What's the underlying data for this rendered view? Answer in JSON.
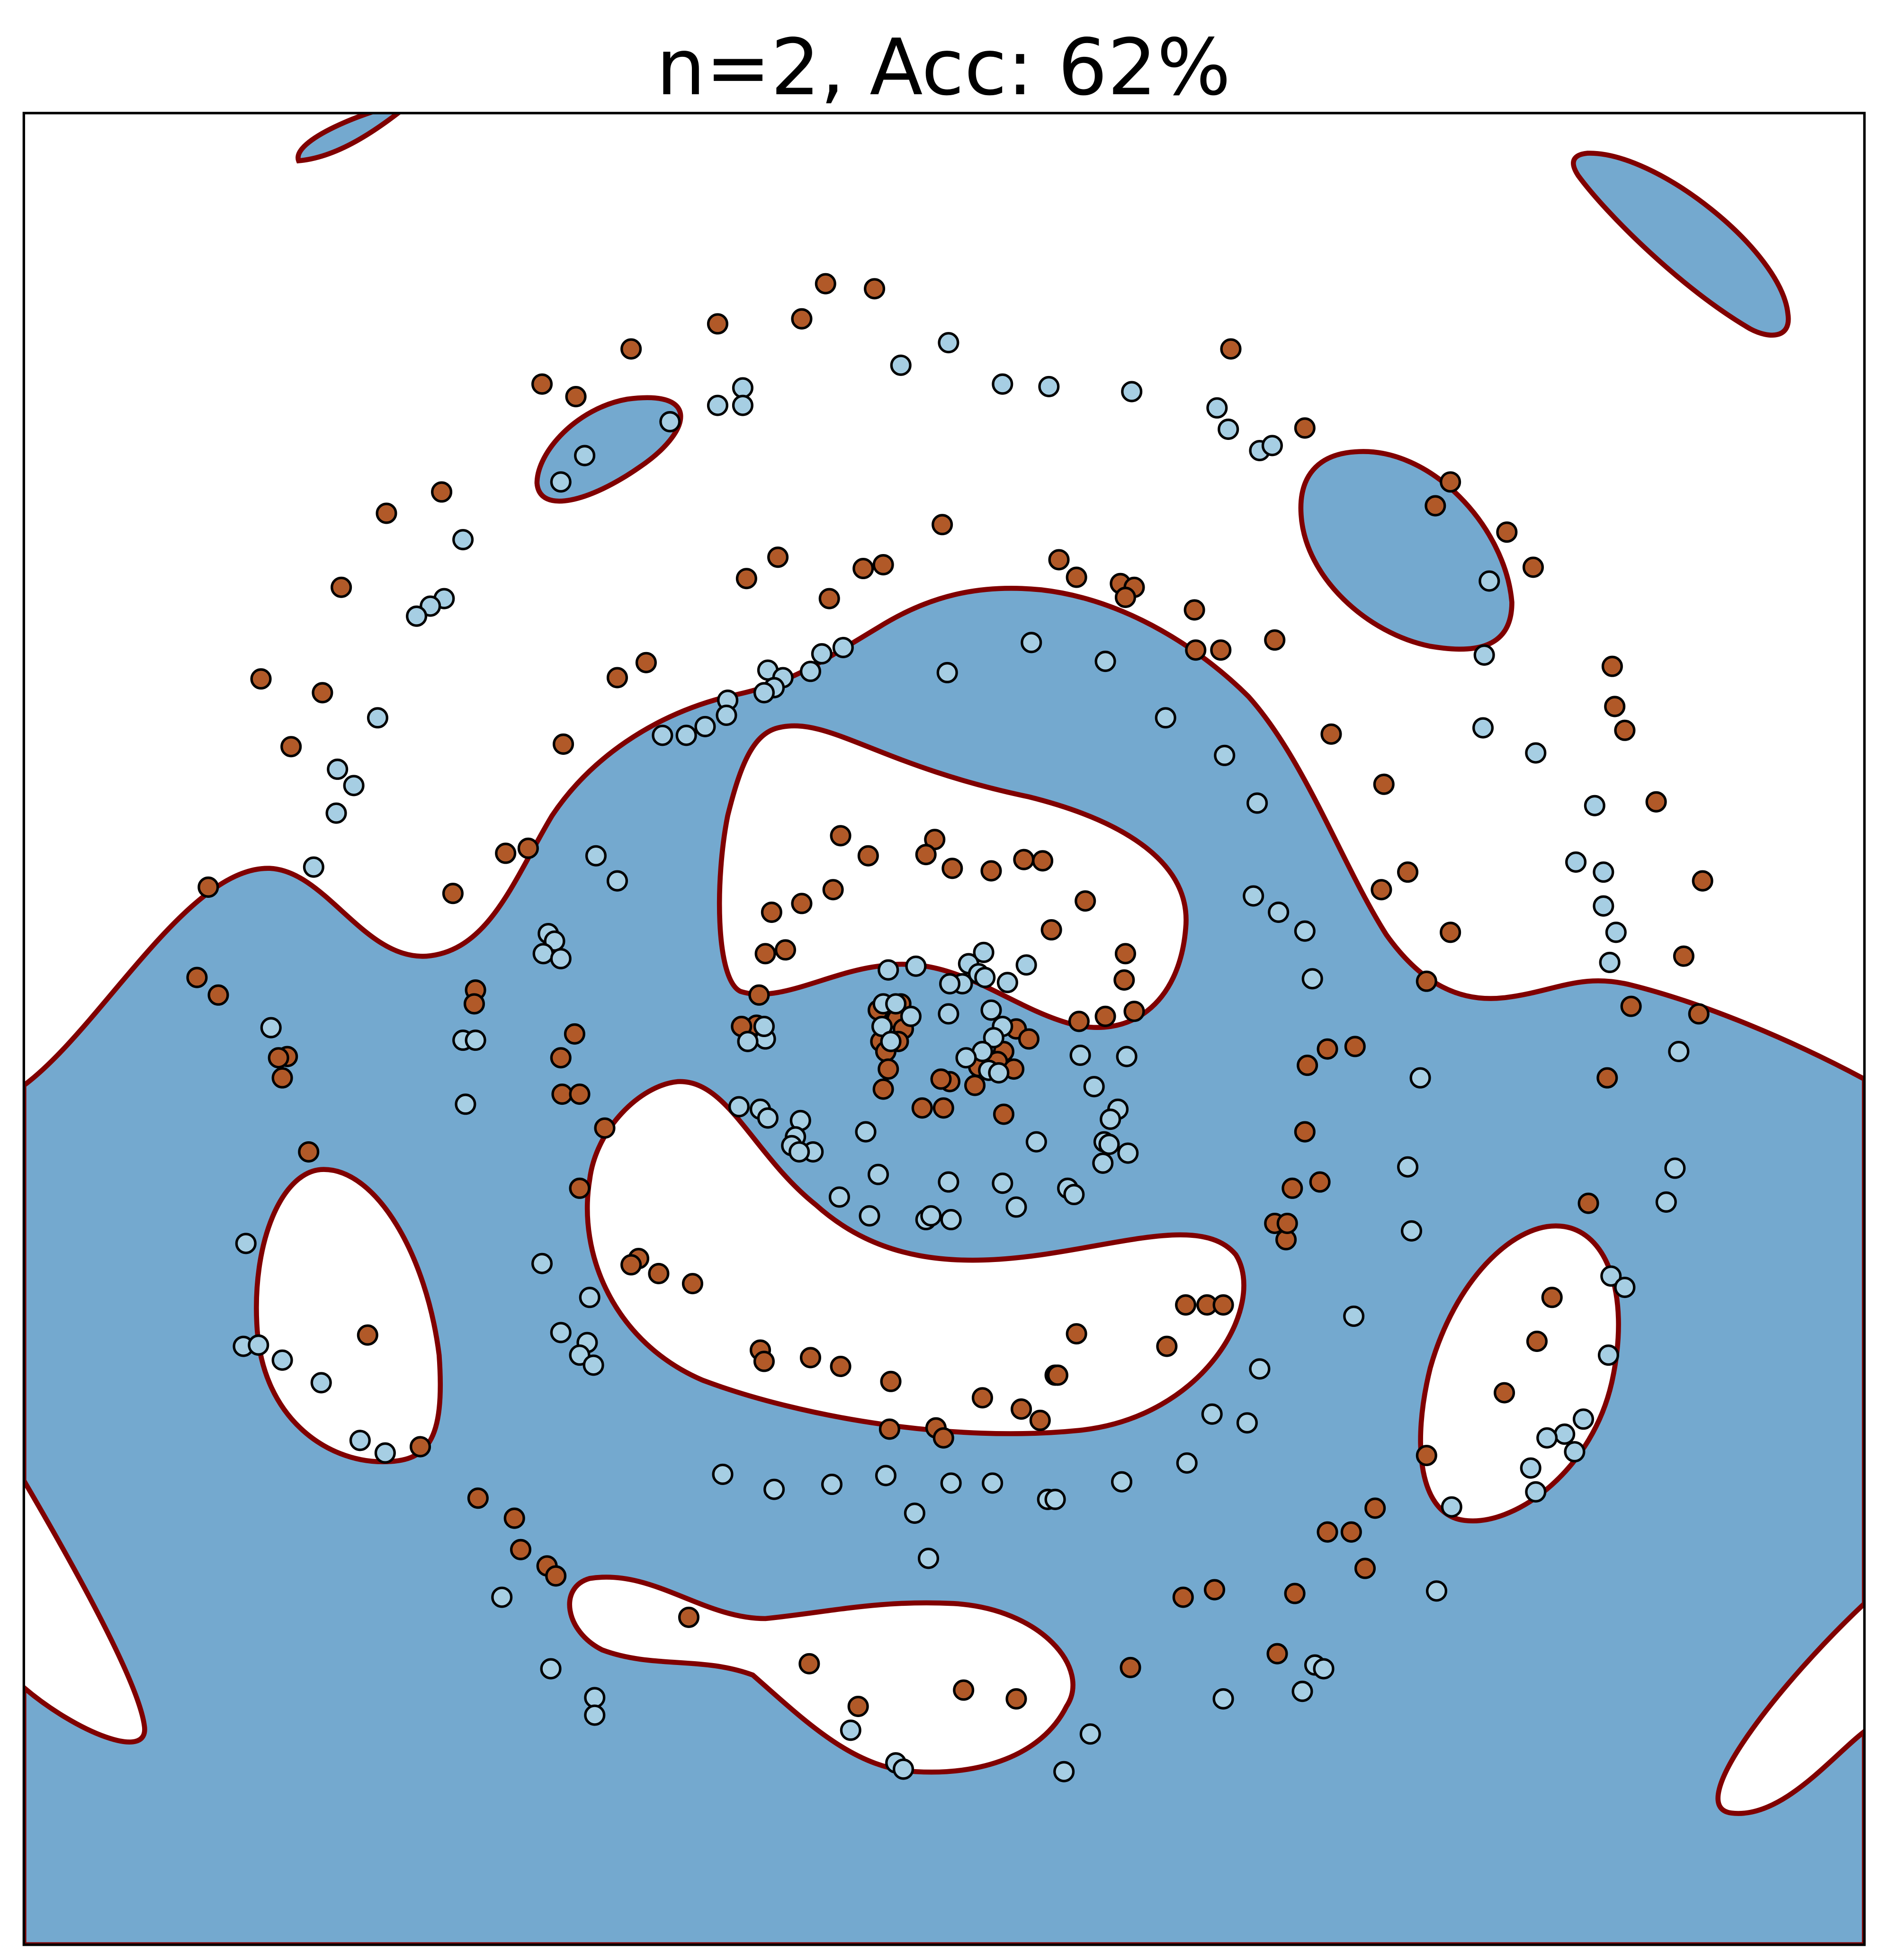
{
  "chart_data": {
    "type": "scatter",
    "title": "n=2, Acc: 62%",
    "xlim": [
      19,
      1486
    ],
    "ylim": [
      1550,
      90
    ],
    "series": [
      {
        "color": "#b15928",
        "x": [
          658,
          697,
          572,
          639,
          503,
          981,
          432,
          459,
          1040,
          1156,
          1144,
          352,
          308,
          751,
          1201,
          620,
          595,
          688,
          704,
          1222,
          272,
          661,
          844,
          858,
          893,
          904,
          897,
          952,
          1016,
          953,
          973,
          515,
          492,
          208,
          257,
          1285,
          1287,
          1295,
          232,
          449,
          1061,
          1103,
          1320,
          670,
          745,
          692,
          738,
          759,
          790,
          816,
          831,
          421,
          403,
          361,
          166,
          1122,
          1101,
          1357,
          664,
          639,
          615,
          865,
          838,
          1156,
          1342,
          626,
          610,
          897,
          896,
          1137,
          157,
          174,
          379,
          378,
          605,
          603,
          881,
          904,
          860,
          591,
          458,
          1354,
          1300,
          229,
          222,
          225,
          1080,
          1058,
          1042,
          447,
          700,
          718,
          715,
          720,
          702,
          706,
          716,
          810,
          820,
          800,
          795,
          780,
          808,
          777,
          757,
          750,
          708,
          704,
          735,
          752,
          800,
          448,
          462,
          1281,
          482,
          1040,
          246,
          462,
          1052,
          1030,
          1266,
          1016,
          1025,
          1026,
          509,
          503,
          525,
          552,
          1237,
          945,
          962,
          975,
          293,
          1225,
          930,
          606,
          609,
          646,
          670,
          858,
          841,
          843,
          710,
          1199,
          783,
          814,
          829,
          746,
          709,
          752,
          335,
          1137,
          381,
          410,
          1096,
          1058,
          1077,
          415,
          436,
          443,
          1088,
          968,
          943,
          1032,
          549,
          1018,
          901,
          645,
          768,
          810,
          684
        ],
        "values": [
          226,
          230,
          258,
          254,
          278,
          278,
          306,
          316,
          341,
          384,
          403,
          392,
          409,
          418,
          424,
          444,
          461,
          453,
          450,
          452,
          468,
          477,
          446,
          460,
          465,
          468,
          476,
          486,
          510,
          518,
          518,
          528,
          540,
          541,
          552,
          531,
          563,
          582,
          595,
          593,
          585,
          625,
          639,
          666,
          669,
          682,
          681,
          692,
          694,
          685,
          686,
          676,
          680,
          712,
          707,
          695,
          709,
          702,
          709,
          720,
          727,
          718,
          741,
          743,
          762,
          757,
          760,
          760,
          781,
          782,
          779,
          793,
          789,
          800,
          793,
          817,
          810,
          806,
          814,
          818,
          824,
          808,
          802,
          842,
          843,
          859,
          834,
          836,
          849,
          843,
          805,
          800,
          812,
          820,
          830,
          838,
          830,
          820,
          828,
          838,
          846,
          850,
          852,
          865,
          862,
          860,
          852,
          868,
          883,
          883,
          888,
          872,
          872,
          859,
          899,
          902,
          918,
          947,
          942,
          947,
          959,
          975,
          988,
          975,
          1003,
          1008,
          1015,
          1023,
          1034,
          1040,
          1040,
          1040,
          1064,
          1069,
          1073,
          1076,
          1085,
          1082,
          1089,
          1063,
          1096,
          1096,
          1101,
          1110,
          1114,
          1123,
          1132,
          1138,
          1139,
          1146,
          1153,
          1160,
          1194,
          1210,
          1202,
          1221,
          1221,
          1235,
          1248,
          1256,
          1250,
          1267,
          1273,
          1270,
          1289,
          1318,
          1329,
          1326,
          1347,
          1354,
          1360
        ]
      },
      {
        "color": "#a6cee3",
        "x": [
          756,
          718,
          799,
          836,
          902,
          592,
          572,
          592,
          534,
          970,
          979,
          1004,
          1014,
          466,
          447,
          369,
          1187,
          354,
          343,
          332,
          822,
          881,
          1183,
          655,
          646,
          672,
          612,
          624,
          617,
          755,
          609,
          580,
          579,
          562,
          547,
          528,
          301,
          929,
          976,
          1182,
          1224,
          269,
          282,
          268,
          1002,
          1271,
          475,
          492,
          250,
          1256,
          1278,
          1278,
          999,
          1019,
          1040,
          437,
          442,
          433,
          447,
          1288,
          1283,
          708,
          730,
          784,
          772,
          780,
          785,
          818,
          803,
          767,
          757,
          1046,
          790,
          799,
          792,
          756,
          704,
          714,
          703,
          726,
          710,
          610,
          596,
          609,
          216,
          369,
          379,
          861,
          898,
          1338,
          783,
          770,
          788,
          796,
          1132,
          371,
          872,
          589,
          606,
          612,
          638,
          891,
          885,
          634,
          631,
          648,
          637,
          690,
          826,
          880,
          884,
          899,
          879,
          1122,
          1335,
          700,
          799,
          851,
          856,
          669,
          756,
          693,
          810,
          738,
          742,
          758,
          1328,
          1125,
          196,
          432,
          1284,
          1295,
          470,
          1079,
          447,
          468,
          462,
          473,
          194,
          206,
          225,
          1282,
          1004,
          256,
          966,
          994,
          1262,
          1247,
          1233,
          1255,
          1220,
          287,
          307,
          946,
          576,
          706,
          758,
          791,
          894,
          617,
          663,
          1224,
          835,
          841,
          729,
          1157,
          740,
          400,
          1145,
          1048,
          1055,
          439,
          975,
          1038,
          474,
          474,
          869,
          678,
          714,
          720,
          848
        ],
        "values": [
          273,
          291,
          306,
          308,
          312,
          309,
          323,
          323,
          336,
          325,
          342,
          359,
          355,
          363,
          384,
          430,
          463,
          477,
          483,
          491,
          512,
          527,
          522,
          521,
          535,
          516,
          534,
          540,
          548,
          536,
          552,
          558,
          570,
          579,
          586,
          586,
          572,
          572,
          602,
          580,
          600,
          613,
          626,
          648,
          640,
          642,
          682,
          702,
          691,
          687,
          695,
          722,
          714,
          727,
          742,
          744,
          750,
          760,
          764,
          743,
          767,
          773,
          770,
          759,
          768,
          776,
          779,
          769,
          783,
          784,
          784,
          780,
          805,
          818,
          827,
          808,
          800,
          800,
          818,
          810,
          830,
          828,
          830,
          818,
          819,
          829,
          829,
          841,
          842,
          838,
          838,
          843,
          853,
          855,
          859,
          880,
          866,
          882,
          884,
          891,
          893,
          884,
          892,
          906,
          913,
          918,
          918,
          902,
          910,
          910,
          912,
          919,
          927,
          930,
          931,
          936,
          943,
          947,
          952,
          954,
          942,
          969,
          962,
          972,
          969,
          972,
          958,
          981,
          991,
          1007,
          1017,
          1026,
          1034,
          1049,
          1062,
          1070,
          1080,
          1088,
          1073,
          1072,
          1084,
          1080,
          1091,
          1102,
          1127,
          1134,
          1131,
          1143,
          1146,
          1157,
          1170,
          1148,
          1158,
          1166,
          1175,
          1176,
          1182,
          1182,
          1181,
          1187,
          1183,
          1189,
          1195,
          1195,
          1206,
          1201,
          1242,
          1273,
          1268,
          1327,
          1330,
          1330,
          1354,
          1348,
          1353,
          1367,
          1382,
          1379,
          1405,
          1410,
          1412
        ]
      }
    ]
  }
}
